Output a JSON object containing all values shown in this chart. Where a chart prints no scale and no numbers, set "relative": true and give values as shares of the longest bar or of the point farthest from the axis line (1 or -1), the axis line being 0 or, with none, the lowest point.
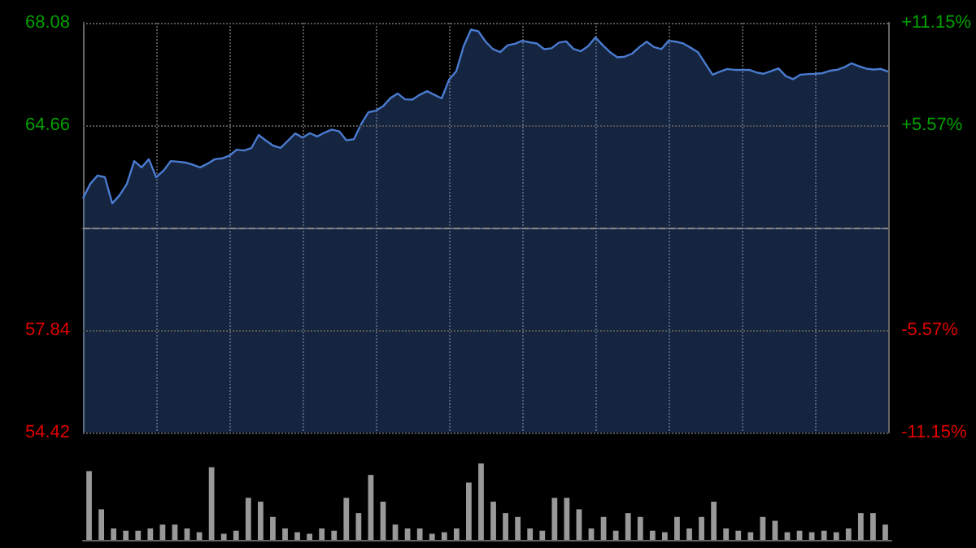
{
  "chart_data": [
    {
      "type": "area",
      "color": "#4a7bd0",
      "categories": [
        null,
        null,
        null,
        null,
        null,
        null,
        null,
        null,
        null,
        null,
        null,
        null,
        null,
        null,
        null,
        null,
        null,
        null,
        null,
        null,
        null,
        null,
        null,
        null,
        null,
        null,
        null,
        null,
        null,
        null,
        null,
        null,
        null,
        null,
        null,
        null,
        null,
        null,
        null,
        null,
        null,
        null,
        null,
        null,
        null,
        null,
        null,
        null,
        null,
        null,
        null,
        null,
        null,
        null,
        null,
        null,
        null,
        null,
        null,
        null,
        null,
        null,
        null,
        null,
        null,
        null,
        null,
        null,
        null,
        null,
        null,
        null,
        null,
        null,
        null,
        null,
        null,
        null,
        null,
        null,
        null,
        null,
        null,
        null,
        null,
        null,
        null,
        null,
        null,
        null,
        null,
        null,
        null,
        null,
        null,
        null,
        null,
        null,
        null,
        null,
        null,
        null,
        null,
        null,
        null,
        null,
        null,
        null,
        null,
        null,
        null
      ],
      "values": [
        62.23,
        62.71,
        62.99,
        62.93,
        62.06,
        62.33,
        62.71,
        63.47,
        63.26,
        63.53,
        62.93,
        63.15,
        63.47,
        63.45,
        63.42,
        63.35,
        63.26,
        63.38,
        63.53,
        63.56,
        63.65,
        63.85,
        63.82,
        63.9,
        64.34,
        64.15,
        63.98,
        63.91,
        64.15,
        64.39,
        64.25,
        64.4,
        64.29,
        64.42,
        64.52,
        64.46,
        64.16,
        64.2,
        64.7,
        65.1,
        65.15,
        65.3,
        65.57,
        65.72,
        65.53,
        65.52,
        65.68,
        65.8,
        65.68,
        65.56,
        66.18,
        66.47,
        67.3,
        67.85,
        67.8,
        67.45,
        67.2,
        67.1,
        67.33,
        67.38,
        67.48,
        67.43,
        67.39,
        67.2,
        67.23,
        67.42,
        67.46,
        67.21,
        67.13,
        67.3,
        67.59,
        67.33,
        67.1,
        66.93,
        66.95,
        67.05,
        67.27,
        67.45,
        67.27,
        67.2,
        67.48,
        67.45,
        67.39,
        67.25,
        67.1,
        66.72,
        66.35,
        66.45,
        66.54,
        66.51,
        66.51,
        66.51,
        66.42,
        66.38,
        66.47,
        66.56,
        66.3,
        66.2,
        66.35,
        66.37,
        66.38,
        66.4,
        66.48,
        66.51,
        66.6,
        66.73,
        66.63,
        66.55,
        66.52,
        66.54,
        66.45
      ],
      "ylim": [
        54.42,
        68.08
      ],
      "yticks": [
        54.42,
        57.84,
        64.66,
        68.08
      ],
      "y2lim": [
        -11.15,
        11.15
      ],
      "y2ticks": [
        {
          "value": -11.15,
          "label": "-11.15%"
        },
        {
          "value": -5.57,
          "label": "-5.57%"
        },
        {
          "value": 5.57,
          "label": "+5.57%"
        },
        {
          "value": 11.15,
          "label": "+11.15%"
        }
      ],
      "ref_lines": [
        {
          "axis": "y",
          "value": 61.25,
          "color": "#888888",
          "line_style": "dashed"
        }
      ],
      "grid": true,
      "tick_labels": "y"
    },
    {
      "type": "bar",
      "relative": true,
      "color": "#999999",
      "tick_labels": false,
      "categories": [
        null,
        null,
        null,
        null,
        null,
        null,
        null,
        null,
        null,
        null,
        null,
        null,
        null,
        null,
        null,
        null,
        null,
        null,
        null,
        null,
        null,
        null,
        null,
        null,
        null,
        null,
        null,
        null,
        null,
        null,
        null,
        null,
        null,
        null,
        null,
        null,
        null,
        null,
        null,
        null,
        null,
        null,
        null,
        null,
        null,
        null,
        null,
        null,
        null,
        null,
        null,
        null,
        null,
        null,
        null,
        null,
        null,
        null,
        null,
        null,
        null,
        null,
        null,
        null,
        null,
        null
      ],
      "values": [
        0.9,
        0.4,
        0.15,
        0.12,
        0.12,
        0.15,
        0.2,
        0.2,
        0.15,
        0.1,
        0.95,
        0.08,
        0.12,
        0.55,
        0.5,
        0.3,
        0.15,
        0.1,
        0.08,
        0.15,
        0.12,
        0.55,
        0.35,
        0.85,
        0.5,
        0.2,
        0.15,
        0.15,
        0.08,
        0.1,
        0.15,
        0.75,
        1,
        0.5,
        0.35,
        0.3,
        0.15,
        0.12,
        0.55,
        0.55,
        0.4,
        0.15,
        0.3,
        0.12,
        0.35,
        0.3,
        0.12,
        0.1,
        0.3,
        0.15,
        0.3,
        0.5,
        0.15,
        0.12,
        0.1,
        0.3,
        0.25,
        0.1,
        0.12,
        0.1,
        0.12,
        0.1,
        0.15,
        0.35,
        0.35,
        0.2
      ]
    }
  ]
}
